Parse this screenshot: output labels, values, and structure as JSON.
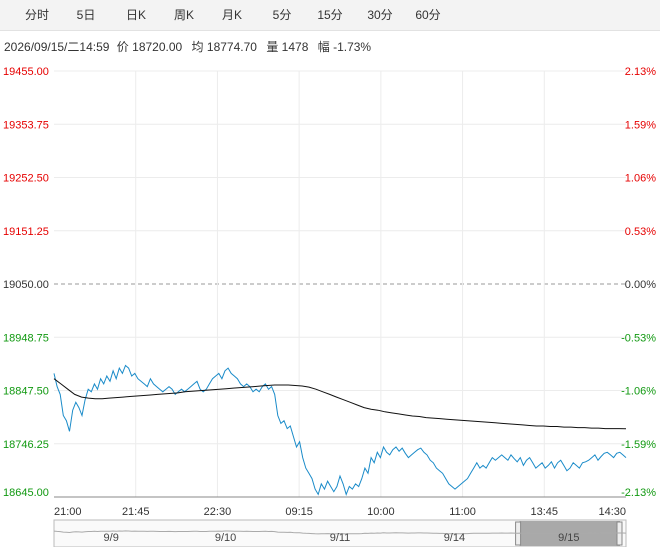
{
  "tabs": [
    {
      "label": "分时",
      "active": true
    },
    {
      "label": "5日"
    },
    {
      "label": "日K"
    },
    {
      "label": "周K"
    },
    {
      "label": "月K"
    },
    {
      "label": "5分"
    },
    {
      "label": "15分"
    },
    {
      "label": "30分"
    },
    {
      "label": "60分"
    }
  ],
  "info": {
    "datetime": "2026/09/15/二14:59",
    "price_label": "价",
    "price": "18720.00",
    "avg_label": "均",
    "avg": "18774.70",
    "vol_label": "量",
    "vol": "1478",
    "change_label": "幅",
    "change": "-1.73%"
  },
  "colors": {
    "up": "#e60000",
    "down": "#119911",
    "flat": "#333333",
    "price_line": "#1a8bc9",
    "avg_line": "#111111",
    "grid": "#ececec",
    "baseline": "#999999"
  },
  "chart_data": {
    "type": "line",
    "title": "",
    "base_price": 19050.0,
    "ylim": [
      18645.0,
      19455.0
    ],
    "y_ticks": [
      {
        "price": "19455.00",
        "pct": "2.13%",
        "dir": "up"
      },
      {
        "price": "19353.75",
        "pct": "1.59%",
        "dir": "up"
      },
      {
        "price": "19252.50",
        "pct": "1.06%",
        "dir": "up"
      },
      {
        "price": "19151.25",
        "pct": "0.53%",
        "dir": "up"
      },
      {
        "price": "19050.00",
        "pct": "0.00%",
        "dir": "flat"
      },
      {
        "price": "18948.75",
        "pct": "-0.53%",
        "dir": "down"
      },
      {
        "price": "18847.50",
        "pct": "-1.06%",
        "dir": "down"
      },
      {
        "price": "18746.25",
        "pct": "-1.59%",
        "dir": "down"
      },
      {
        "price": "18645.00",
        "pct": "-2.13%",
        "dir": "down"
      }
    ],
    "x_ticks": [
      "21:00",
      "21:45",
      "22:30",
      "09:15",
      "10:00",
      "11:00",
      "13:45",
      "14:30"
    ],
    "price_series": [
      18880,
      18855,
      18840,
      18800,
      18790,
      18770,
      18810,
      18825,
      18815,
      18800,
      18830,
      18850,
      18845,
      18860,
      18850,
      18870,
      18860,
      18875,
      18865,
      18885,
      18870,
      18890,
      18880,
      18895,
      18890,
      18875,
      18880,
      18870,
      18865,
      18860,
      18855,
      18870,
      18860,
      18855,
      18850,
      18845,
      18850,
      18855,
      18850,
      18840,
      18845,
      18850,
      18845,
      18850,
      18855,
      18860,
      18865,
      18850,
      18845,
      18850,
      18860,
      18870,
      18875,
      18880,
      18870,
      18885,
      18890,
      18880,
      18875,
      18870,
      18860,
      18855,
      18860,
      18855,
      18845,
      18850,
      18845,
      18855,
      18860,
      18850,
      18855,
      18840,
      18800,
      18785,
      18790,
      18775,
      18780,
      18760,
      18740,
      18750,
      18720,
      18700,
      18690,
      18680,
      18660,
      18650,
      18670,
      18660,
      18675,
      18665,
      18655,
      18665,
      18685,
      18670,
      18650,
      18665,
      18660,
      18670,
      18665,
      18680,
      18700,
      18690,
      18720,
      18710,
      18730,
      18720,
      18740,
      18730,
      18725,
      18735,
      18740,
      18732,
      18738,
      18728,
      18720,
      18725,
      18730,
      18735,
      18738,
      18730,
      18725,
      18715,
      18710,
      18700,
      18695,
      18690,
      18680,
      18670,
      18665,
      18660,
      18665,
      18670,
      18675,
      18680,
      18690,
      18700,
      18710,
      18700,
      18705,
      18700,
      18710,
      18720,
      18715,
      18720,
      18725,
      18720,
      18715,
      18725,
      18718,
      18712,
      18720,
      18705,
      18715,
      18720,
      18710,
      18700,
      18705,
      18710,
      18700,
      18705,
      18712,
      18700,
      18710,
      18715,
      18705,
      18695,
      18700,
      18710,
      18705,
      18700,
      18710,
      18712,
      18715,
      18720,
      18725,
      18715,
      18722,
      18728,
      18730,
      18725,
      18720,
      18728,
      18730,
      18725,
      18720
    ],
    "avg_series": [
      18870,
      18860,
      18850,
      18840,
      18835,
      18833,
      18832,
      18832,
      18833,
      18834,
      18835,
      18836,
      18837,
      18838,
      18839,
      18840,
      18841,
      18842,
      18843,
      18845,
      18846,
      18847,
      18848,
      18849,
      18850,
      18851,
      18852,
      18853,
      18854,
      18855,
      18856,
      18857,
      18858,
      18858,
      18858,
      18857,
      18856,
      18854,
      18850,
      18845,
      18840,
      18835,
      18830,
      18825,
      18820,
      18815,
      18812,
      18810,
      18807,
      18805,
      18803,
      18801,
      18799,
      18798,
      18796,
      18795,
      18794,
      18793,
      18792,
      18791,
      18790,
      18789,
      18788,
      18787,
      18786,
      18785,
      18784,
      18783,
      18782,
      18781,
      18780,
      18780,
      18779,
      18779,
      18778,
      18778,
      18777,
      18777,
      18776,
      18776,
      18775,
      18775,
      18775,
      18774.7
    ],
    "overview": {
      "labels": [
        "9/9",
        "9/10",
        "9/11",
        "9/14",
        "9/15"
      ],
      "selected": "9/15"
    }
  }
}
